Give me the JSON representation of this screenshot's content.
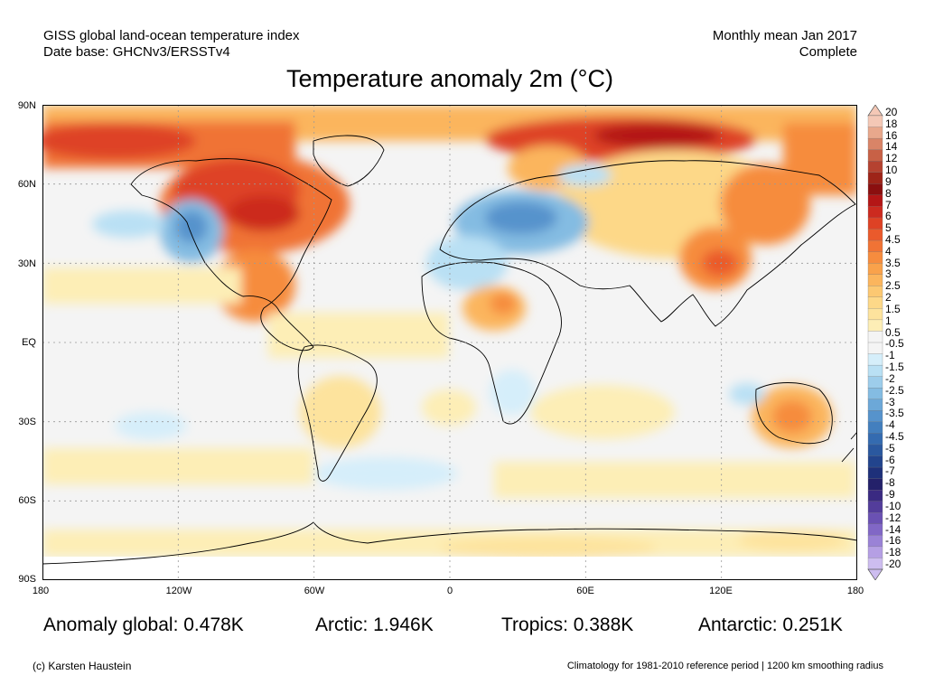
{
  "header": {
    "line1_left": "GISS global land-ocean temperature index",
    "line2_left": "Date base: GHCNv3/ERSSTv4",
    "line1_right": "Monthly mean Jan 2017",
    "line2_right": "Complete"
  },
  "title": "Temperature anomaly 2m (°C)",
  "axes": {
    "lat_ticks": [
      "90N",
      "60N",
      "30N",
      "EQ",
      "30S",
      "60S",
      "90S"
    ],
    "lon_ticks": [
      "180",
      "120W",
      "60W",
      "0",
      "60E",
      "120E",
      "180"
    ]
  },
  "stats": {
    "global": "Anomaly global: 0.478K",
    "arctic": "Arctic: 1.946K",
    "tropics": "Tropics: 0.388K",
    "antarctic": "Antarctic: 0.251K"
  },
  "footer": {
    "credit": "(c) Karsten Haustein",
    "note": "Climatology for 1981-2010 reference period | 1200 km smoothing radius"
  },
  "colorbar": {
    "labels": [
      "20",
      "18",
      "16",
      "14",
      "12",
      "10",
      "9",
      "8",
      "7",
      "6",
      "5",
      "4.5",
      "4",
      "3.5",
      "3",
      "2.5",
      "2",
      "1.5",
      "1",
      "0.5",
      "-0.5",
      "-1",
      "-1.5",
      "-2",
      "-2.5",
      "-3",
      "-3.5",
      "-4",
      "-4.5",
      "-5",
      "-6",
      "-7",
      "-8",
      "-9",
      "-10",
      "-12",
      "-14",
      "-16",
      "-18",
      "-20"
    ],
    "colors": [
      "#f4c8b6",
      "#e8a88c",
      "#d98467",
      "#c86146",
      "#b54230",
      "#9e2418",
      "#8b0f0f",
      "#b41616",
      "#cc2a1f",
      "#de4225",
      "#ea5a2c",
      "#f07335",
      "#f68c3e",
      "#f9a24b",
      "#fbb55d",
      "#fcc872",
      "#fdd888",
      "#fde39d",
      "#fdeeb6",
      "#f4f4f4",
      "#f4f4f4",
      "#d5eefa",
      "#b9e0f4",
      "#9dcdeb",
      "#84bce2",
      "#6ca8d8",
      "#5693cc",
      "#437fbe",
      "#346bb0",
      "#2a589f",
      "#22448d",
      "#1e307a",
      "#24216a",
      "#3a2a82",
      "#533d9b",
      "#6a51b3",
      "#8167c6",
      "#9a82d6",
      "#b59fe4",
      "#cdbdef"
    ]
  }
}
